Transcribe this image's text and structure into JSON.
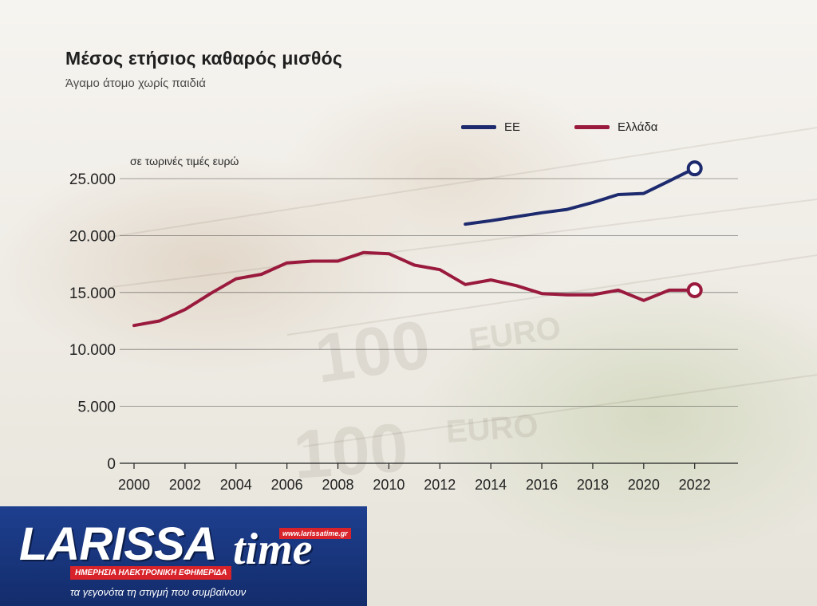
{
  "chart_data": {
    "type": "line",
    "title": "Μέσος ετήσιος καθαρός μισθός",
    "subtitle": "Άγαμο άτομο χωρίς παιδιά",
    "unit_note": "σε τωρινές τιμές ευρώ",
    "ylim": [
      0,
      25000
    ],
    "y_ticks": [
      "0",
      "5.000",
      "10.000",
      "15.000",
      "20.000",
      "25.000"
    ],
    "y_tick_values": [
      0,
      5000,
      10000,
      15000,
      20000,
      25000
    ],
    "x_ticks": [
      "2000",
      "2002",
      "2004",
      "2006",
      "2008",
      "2010",
      "2012",
      "2014",
      "2016",
      "2018",
      "2020",
      "2022"
    ],
    "x_tick_values": [
      2000,
      2002,
      2004,
      2006,
      2008,
      2010,
      2012,
      2014,
      2016,
      2018,
      2020,
      2022
    ],
    "xlim": [
      2000,
      2023.7
    ],
    "grid": "horizontal",
    "legend_position": "top-right",
    "series": [
      {
        "name": "ΕΕ",
        "color": "#1d2a6e",
        "x": [
          2013,
          2014,
          2015,
          2016,
          2017,
          2018,
          2019,
          2020,
          2021,
          2022
        ],
        "values": [
          21000,
          21300,
          21650,
          22000,
          22300,
          22900,
          23600,
          23700,
          24800,
          25900
        ]
      },
      {
        "name": "Ελλάδα",
        "color": "#9a1a3e",
        "x": [
          2000,
          2001,
          2002,
          2003,
          2004,
          2005,
          2006,
          2007,
          2008,
          2009,
          2010,
          2011,
          2012,
          2013,
          2014,
          2015,
          2016,
          2017,
          2018,
          2019,
          2020,
          2021,
          2022
        ],
        "values": [
          12100,
          12500,
          13500,
          14900,
          16200,
          16600,
          17600,
          17750,
          17750,
          18500,
          18400,
          17400,
          17000,
          15700,
          16100,
          15600,
          14900,
          14800,
          14800,
          15200,
          14300,
          15200,
          15200
        ]
      }
    ]
  },
  "logo": {
    "word": "LARISSA",
    "time": "time",
    "url": "www.larissatime.gr",
    "tagline": "ΗΜΕΡΗΣΙΑ ΗΛΕΚΤΡΟΝΙΚΗ ΕΦΗΜΕΡΙΔΑ",
    "slogan": "τα γεγονότα τη στιγμή που συμβαίνουν"
  }
}
